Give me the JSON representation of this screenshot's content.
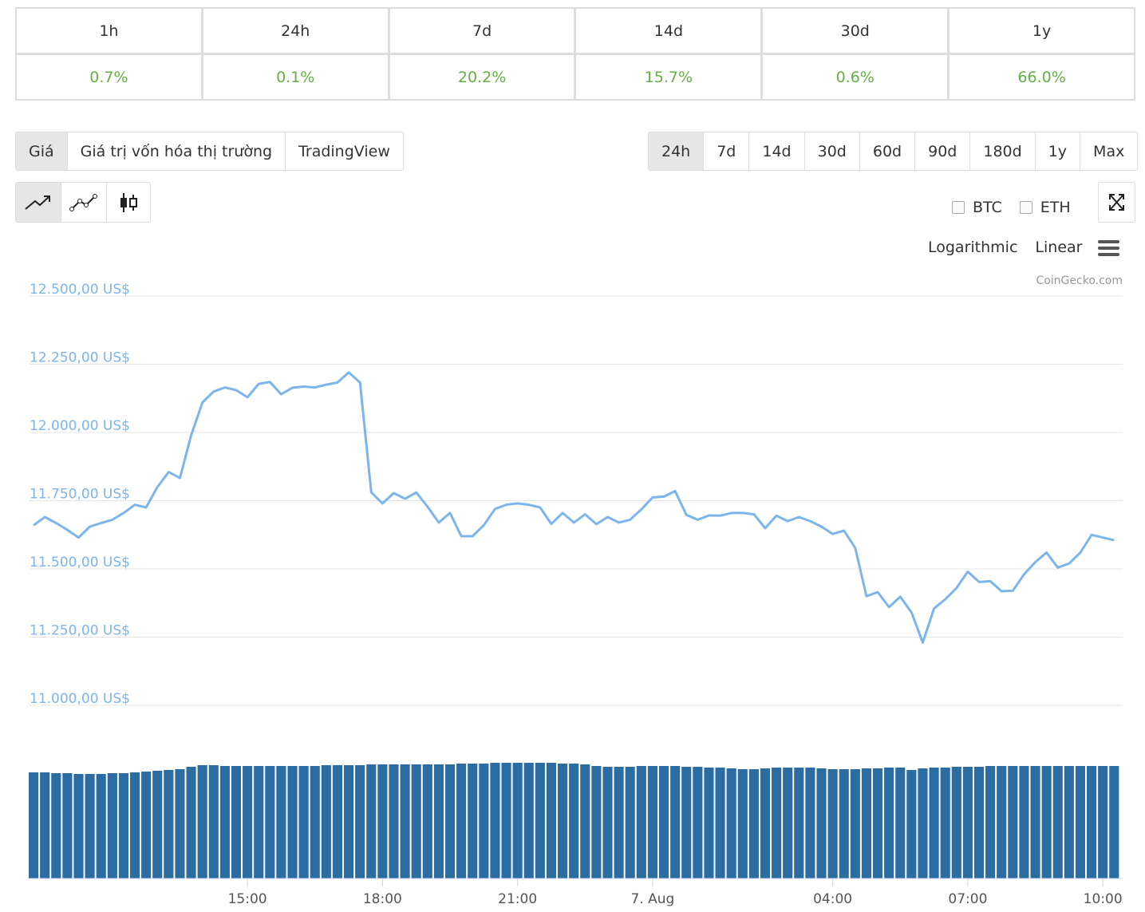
{
  "performance": {
    "headers": [
      "1h",
      "24h",
      "7d",
      "14d",
      "30d",
      "1y"
    ],
    "values": [
      "0.7%",
      "0.1%",
      "20.2%",
      "15.7%",
      "0.6%",
      "66.0%"
    ]
  },
  "chart_tabs": [
    "Giá",
    "Giá trị vốn hóa thị trường",
    "TradingView"
  ],
  "active_tab": 0,
  "range_buttons": [
    "24h",
    "7d",
    "14d",
    "30d",
    "60d",
    "90d",
    "180d",
    "1y",
    "Max"
  ],
  "active_range": 0,
  "compare": [
    "BTC",
    "ETH"
  ],
  "scale_options": [
    "Logarithmic",
    "Linear"
  ],
  "credit": "CoinGecko.com",
  "chart_data": {
    "type": "line",
    "color": "#7cb5ec",
    "grid": true,
    "xlim": [
      10.16,
      34.44
    ],
    "xticks": [
      {
        "value": 15,
        "label": "15:00"
      },
      {
        "value": 18,
        "label": "18:00"
      },
      {
        "value": 21,
        "label": "21:00"
      },
      {
        "value": 24,
        "label": "7. Aug"
      },
      {
        "value": 28,
        "label": "04:00"
      },
      {
        "value": 31,
        "label": "07:00"
      },
      {
        "value": 34,
        "label": "10:00"
      }
    ],
    "ylim": [
      11000,
      12500
    ],
    "yticks": [
      {
        "value": 12500,
        "label": "12.500,00 US$"
      },
      {
        "value": 12250,
        "label": "12.250,00 US$"
      },
      {
        "value": 12000,
        "label": "12.000,00 US$"
      },
      {
        "value": 11750,
        "label": "11.750,00 US$"
      },
      {
        "value": 11500,
        "label": "11.500,00 US$"
      },
      {
        "value": 11250,
        "label": "11.250,00 US$"
      },
      {
        "value": 11000,
        "label": "11.000,00 US$"
      }
    ],
    "x": [
      10.25,
      10.5,
      10.75,
      11,
      11.25,
      11.5,
      11.75,
      12,
      12.25,
      12.5,
      12.75,
      13,
      13.25,
      13.5,
      13.75,
      14,
      14.25,
      14.5,
      14.75,
      15,
      15.25,
      15.5,
      15.75,
      16,
      16.25,
      16.5,
      16.75,
      17,
      17.25,
      17.5,
      17.75,
      18,
      18.25,
      18.5,
      18.75,
      19,
      19.25,
      19.5,
      19.75,
      20,
      20.25,
      20.5,
      20.75,
      21,
      21.25,
      21.5,
      21.75,
      22,
      22.25,
      22.5,
      22.75,
      23,
      23.25,
      23.5,
      23.75,
      24,
      24.25,
      24.5,
      24.75,
      25,
      25.25,
      25.5,
      25.75,
      26,
      26.25,
      26.5,
      26.75,
      27,
      27.25,
      27.5,
      27.75,
      28,
      28.25,
      28.5,
      28.75,
      29,
      29.25,
      29.5,
      29.75,
      30,
      30.25,
      30.5,
      30.75,
      31,
      31.25,
      31.5,
      31.75,
      32,
      32.25,
      32.5,
      32.75,
      33,
      33.25,
      33.5,
      33.75,
      34,
      34.25
    ],
    "values": [
      11660,
      11690,
      11668,
      11643,
      11615,
      11655,
      11668,
      11680,
      11705,
      11735,
      11725,
      11800,
      11855,
      11833,
      11990,
      12110,
      12150,
      12165,
      12155,
      12129,
      12178,
      12185,
      12140,
      12164,
      12168,
      12165,
      12175,
      12183,
      12220,
      12183,
      11780,
      11740,
      11778,
      11757,
      11780,
      11728,
      11670,
      11705,
      11620,
      11620,
      11660,
      11720,
      11735,
      11740,
      11735,
      11725,
      11665,
      11705,
      11670,
      11700,
      11664,
      11690,
      11670,
      11680,
      11718,
      11762,
      11765,
      11785,
      11698,
      11680,
      11696,
      11695,
      11705,
      11705,
      11700,
      11649,
      11695,
      11675,
      11690,
      11675,
      11655,
      11628,
      11640,
      11577,
      11400,
      11415,
      11360,
      11398,
      11340,
      11230,
      11355,
      11389,
      11430,
      11490,
      11452,
      11455,
      11418,
      11420,
      11480,
      11525,
      11560,
      11505,
      11520,
      11560,
      11625,
      11615,
      11605
    ],
    "volume_color": "#2b6ca3",
    "y2lim": [
      0,
      150
    ],
    "volume": [
      133,
      133,
      132,
      132,
      131,
      131,
      131,
      132,
      132,
      133,
      134,
      135,
      136,
      137,
      140,
      142,
      142,
      141,
      141,
      141,
      141,
      141,
      141,
      141,
      141,
      141,
      142,
      142,
      142,
      142,
      143,
      143,
      143,
      143,
      143,
      143,
      143,
      143,
      144,
      144,
      144,
      145,
      145,
      145,
      145,
      145,
      145,
      144,
      144,
      143,
      141,
      140,
      140,
      140,
      141,
      141,
      141,
      141,
      140,
      140,
      139,
      139,
      138,
      137,
      137,
      138,
      139,
      139,
      139,
      139,
      138,
      137,
      137,
      137,
      138,
      138,
      139,
      139,
      136,
      138,
      139,
      139,
      140,
      140,
      140,
      141,
      141,
      141,
      141,
      141,
      141,
      141,
      141,
      141,
      141,
      141,
      141
    ]
  }
}
